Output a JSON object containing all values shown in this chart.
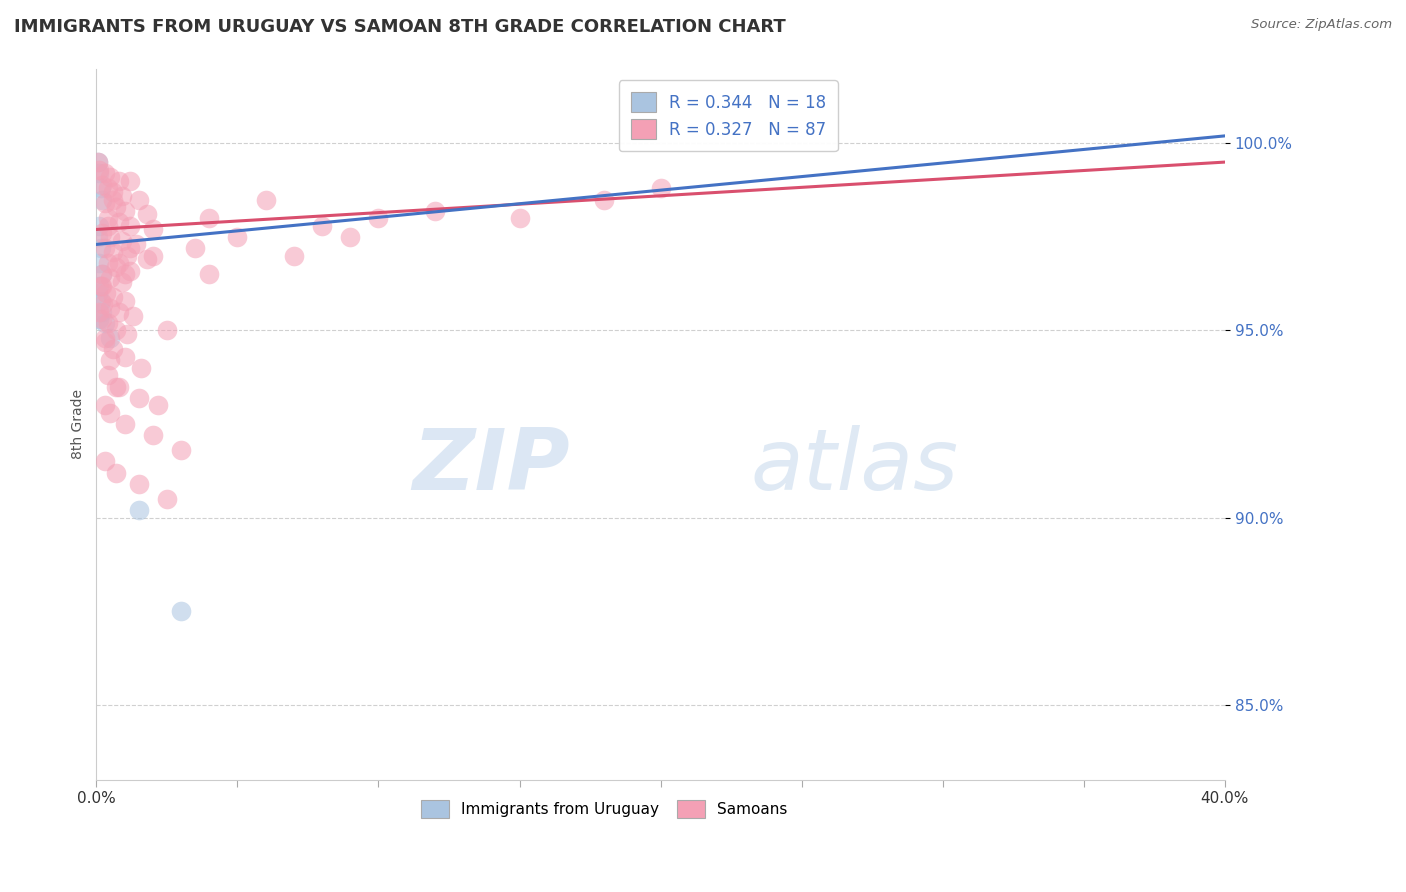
{
  "title": "IMMIGRANTS FROM URUGUAY VS SAMOAN 8TH GRADE CORRELATION CHART",
  "source": "Source: ZipAtlas.com",
  "ylabel": "8th Grade",
  "y_ticks": [
    85.0,
    90.0,
    95.0,
    100.0
  ],
  "y_tick_labels": [
    "85.0%",
    "90.0%",
    "95.0%",
    "100.0%"
  ],
  "x_range": [
    0.0,
    40.0
  ],
  "y_range": [
    83.0,
    102.0
  ],
  "x_ticks": [
    0.0,
    5.0,
    10.0,
    15.0,
    20.0,
    25.0,
    30.0,
    35.0,
    40.0
  ],
  "legend_text1": "R = 0.344   N = 18",
  "legend_text2": "R = 0.327   N = 87",
  "legend_label1": "Immigrants from Uruguay",
  "legend_label2": "Samoans",
  "blue_color": "#aac4e0",
  "pink_color": "#f4a0b5",
  "line_blue": "#4472c4",
  "line_pink": "#d94f6e",
  "text_blue": "#4472c4",
  "watermark_zip": "ZIP",
  "watermark_atlas": "atlas",
  "blue_points": [
    [
      0.05,
      99.5
    ],
    [
      0.1,
      99.2
    ],
    [
      0.15,
      98.8
    ],
    [
      0.2,
      98.5
    ],
    [
      0.1,
      97.8
    ],
    [
      0.05,
      97.5
    ],
    [
      0.15,
      97.2
    ],
    [
      0.1,
      96.8
    ],
    [
      0.2,
      96.5
    ],
    [
      0.1,
      96.2
    ],
    [
      0.05,
      96.0
    ],
    [
      0.15,
      95.8
    ],
    [
      0.2,
      95.5
    ],
    [
      0.1,
      95.3
    ],
    [
      0.3,
      95.2
    ],
    [
      0.5,
      94.8
    ],
    [
      1.5,
      90.2
    ],
    [
      3.0,
      87.5
    ]
  ],
  "pink_points": [
    [
      0.05,
      99.5
    ],
    [
      0.1,
      99.3
    ],
    [
      0.3,
      99.2
    ],
    [
      0.5,
      99.1
    ],
    [
      0.8,
      99.0
    ],
    [
      1.2,
      99.0
    ],
    [
      0.2,
      98.9
    ],
    [
      0.4,
      98.8
    ],
    [
      0.6,
      98.7
    ],
    [
      0.9,
      98.6
    ],
    [
      1.5,
      98.5
    ],
    [
      0.3,
      98.4
    ],
    [
      0.7,
      98.3
    ],
    [
      1.0,
      98.2
    ],
    [
      1.8,
      98.1
    ],
    [
      0.4,
      98.0
    ],
    [
      0.8,
      97.9
    ],
    [
      1.2,
      97.8
    ],
    [
      2.0,
      97.7
    ],
    [
      0.2,
      97.6
    ],
    [
      0.5,
      97.5
    ],
    [
      0.9,
      97.4
    ],
    [
      1.4,
      97.3
    ],
    [
      0.3,
      97.2
    ],
    [
      0.6,
      97.1
    ],
    [
      1.1,
      97.0
    ],
    [
      1.8,
      96.9
    ],
    [
      0.4,
      96.8
    ],
    [
      0.7,
      96.7
    ],
    [
      1.2,
      96.6
    ],
    [
      0.2,
      96.5
    ],
    [
      0.5,
      96.4
    ],
    [
      0.9,
      96.3
    ],
    [
      0.15,
      96.2
    ],
    [
      0.35,
      96.0
    ],
    [
      0.6,
      95.9
    ],
    [
      1.0,
      95.8
    ],
    [
      0.25,
      95.7
    ],
    [
      0.5,
      95.6
    ],
    [
      0.8,
      95.5
    ],
    [
      1.3,
      95.4
    ],
    [
      0.2,
      95.3
    ],
    [
      0.4,
      95.2
    ],
    [
      0.7,
      95.0
    ],
    [
      1.1,
      94.9
    ],
    [
      0.3,
      94.7
    ],
    [
      0.6,
      94.5
    ],
    [
      1.0,
      94.3
    ],
    [
      1.6,
      94.0
    ],
    [
      0.4,
      93.8
    ],
    [
      0.8,
      93.5
    ],
    [
      1.5,
      93.2
    ],
    [
      2.2,
      93.0
    ],
    [
      0.5,
      92.8
    ],
    [
      1.0,
      92.5
    ],
    [
      2.0,
      92.2
    ],
    [
      3.0,
      91.8
    ],
    [
      0.3,
      91.5
    ],
    [
      0.7,
      91.2
    ],
    [
      1.5,
      90.9
    ],
    [
      2.5,
      90.5
    ],
    [
      0.5,
      94.2
    ],
    [
      0.3,
      93.0
    ],
    [
      1.0,
      96.5
    ],
    [
      2.0,
      97.0
    ],
    [
      3.5,
      97.2
    ],
    [
      5.0,
      97.5
    ],
    [
      7.0,
      97.0
    ],
    [
      4.0,
      98.0
    ],
    [
      6.0,
      98.5
    ],
    [
      8.0,
      97.8
    ],
    [
      10.0,
      98.0
    ],
    [
      12.0,
      98.2
    ],
    [
      15.0,
      98.0
    ],
    [
      18.0,
      98.5
    ],
    [
      20.0,
      98.8
    ],
    [
      0.2,
      96.2
    ],
    [
      0.4,
      97.8
    ],
    [
      0.6,
      98.5
    ],
    [
      0.8,
      96.8
    ],
    [
      1.2,
      97.2
    ],
    [
      2.5,
      95.0
    ],
    [
      4.0,
      96.5
    ],
    [
      9.0,
      97.5
    ],
    [
      0.1,
      95.5
    ],
    [
      0.3,
      94.8
    ],
    [
      0.7,
      93.5
    ]
  ]
}
